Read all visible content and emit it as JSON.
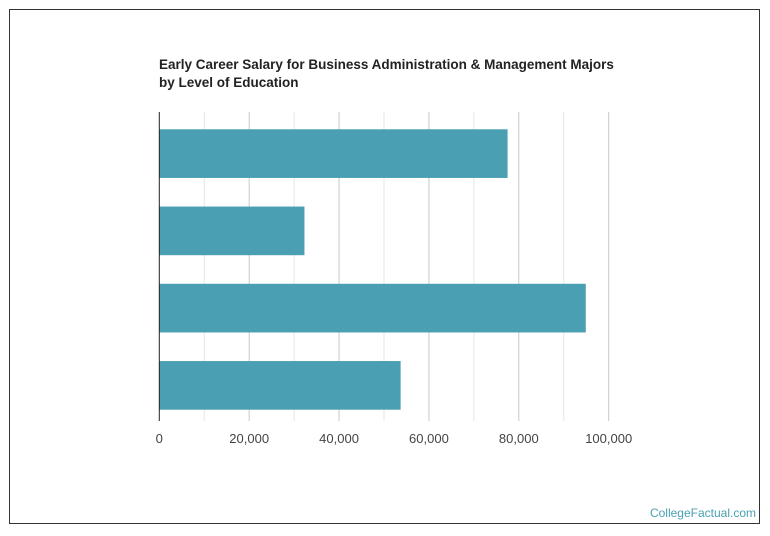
{
  "chart_data": {
    "type": "bar",
    "orientation": "horizontal",
    "title": "Early Career Salary for Business Administration & Management Majors",
    "subtitle": "by Level of Education",
    "categories": [
      "",
      "",
      "",
      ""
    ],
    "values": [
      77500,
      32300,
      94900,
      53700
    ],
    "xlabel": "",
    "ylabel": "",
    "xlim": [
      0,
      100000
    ],
    "xticks": [
      0,
      20000,
      40000,
      60000,
      80000,
      100000
    ],
    "xtick_labels": [
      "0",
      "20,000",
      "40,000",
      "60,000",
      "80,000",
      "100,000"
    ],
    "grid": true,
    "bar_color": "#4aa0b2"
  },
  "credit": "CollegeFactual.com"
}
